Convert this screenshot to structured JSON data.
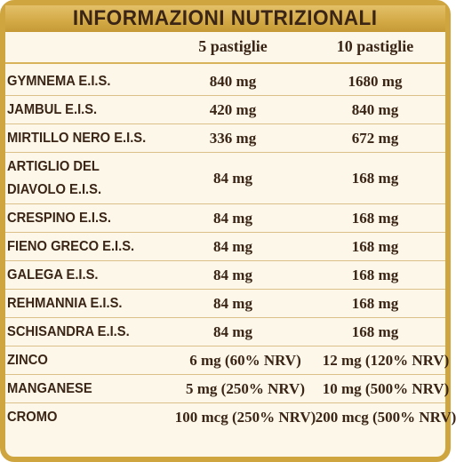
{
  "title": "INFORMAZIONI NUTRIZIONALI",
  "columns": {
    "dose_5": "5 pastiglie",
    "dose_10": "10 pastiglie"
  },
  "rows": [
    {
      "name": "GYMNEMA E.I.S.",
      "dose_5": "840 mg",
      "dose_10": "1680 mg"
    },
    {
      "name": "JAMBUL E.I.S.",
      "dose_5": "420 mg",
      "dose_10": "840 mg"
    },
    {
      "name": "MIRTILLO NERO E.I.S.",
      "dose_5": "336 mg",
      "dose_10": "672 mg"
    },
    {
      "name": "ARTIGLIO DEL DIAVOLO E.I.S.",
      "dose_5": "84 mg",
      "dose_10": "168 mg"
    },
    {
      "name": "CRESPINO E.I.S.",
      "dose_5": "84 mg",
      "dose_10": "168 mg"
    },
    {
      "name": "FIENO GRECO E.I.S.",
      "dose_5": "84 mg",
      "dose_10": "168 mg"
    },
    {
      "name": "GALEGA E.I.S.",
      "dose_5": "84 mg",
      "dose_10": "168 mg"
    },
    {
      "name": "REHMANNIA E.I.S.",
      "dose_5": "84 mg",
      "dose_10": "168 mg"
    },
    {
      "name": "SCHISANDRA E.I.S.",
      "dose_5": "84 mg",
      "dose_10": "168 mg"
    },
    {
      "name": "ZINCO",
      "dose_5": "6 mg (60% NRV)",
      "dose_10": "12 mg (120% NRV)"
    },
    {
      "name": "MANGANESE",
      "dose_5": "5 mg (250% NRV)",
      "dose_10": "10 mg (500% NRV)"
    },
    {
      "name": "CROMO",
      "dose_5": "100 mcg (250% NRV)",
      "dose_10": "200 mcg (500% NRV)"
    }
  ],
  "colors": {
    "border_gold": "#cfa53f",
    "background_cream": "#fcf7e8",
    "text_brown": "#3a2516"
  }
}
